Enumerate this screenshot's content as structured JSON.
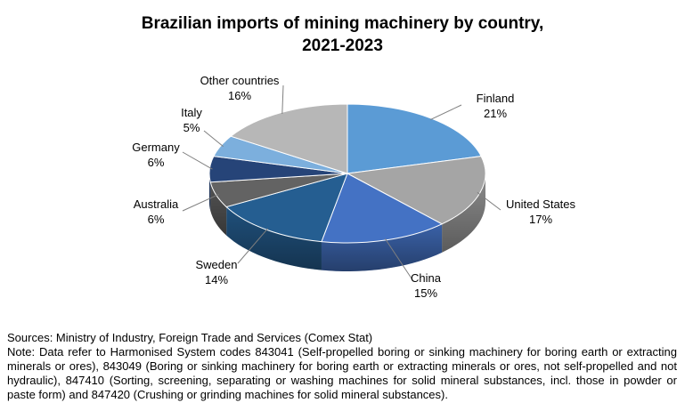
{
  "chart_data": {
    "type": "pie",
    "title_lines": [
      "Brazilian imports of mining machinery by country,",
      "2021-2023"
    ],
    "unit": "%",
    "slices": [
      {
        "label": "Finland",
        "value": 21,
        "color": "#5b9bd5"
      },
      {
        "label": "United States",
        "value": 17,
        "color": "#a5a5a5"
      },
      {
        "label": "China",
        "value": 15,
        "color": "#4472c4"
      },
      {
        "label": "Sweden",
        "value": 14,
        "color": "#255e91"
      },
      {
        "label": "Australia",
        "value": 6,
        "color": "#636363"
      },
      {
        "label": "Germany",
        "value": 6,
        "color": "#264478"
      },
      {
        "label": "Italy",
        "value": 5,
        "color": "#7cafdd"
      },
      {
        "label": "Other countries",
        "value": 16,
        "color": "#b7b7b7"
      }
    ]
  },
  "footer": {
    "sources": "Sources: Ministry of Industry, Foreign Trade and Services (Comex Stat)",
    "note": "Note: Data refer to Harmonised System codes 843041 (Self-propelled boring or sinking machinery for boring earth or extracting minerals or ores), 843049 (Boring or sinking machinery for boring earth or extracting minerals or ores, not self-propelled and not hydraulic), 847410 (Sorting, screening, separating or washing machines for solid mineral substances, incl. those in powder or paste form) and 847420 (Crushing or grinding machines for solid mineral substances)."
  }
}
